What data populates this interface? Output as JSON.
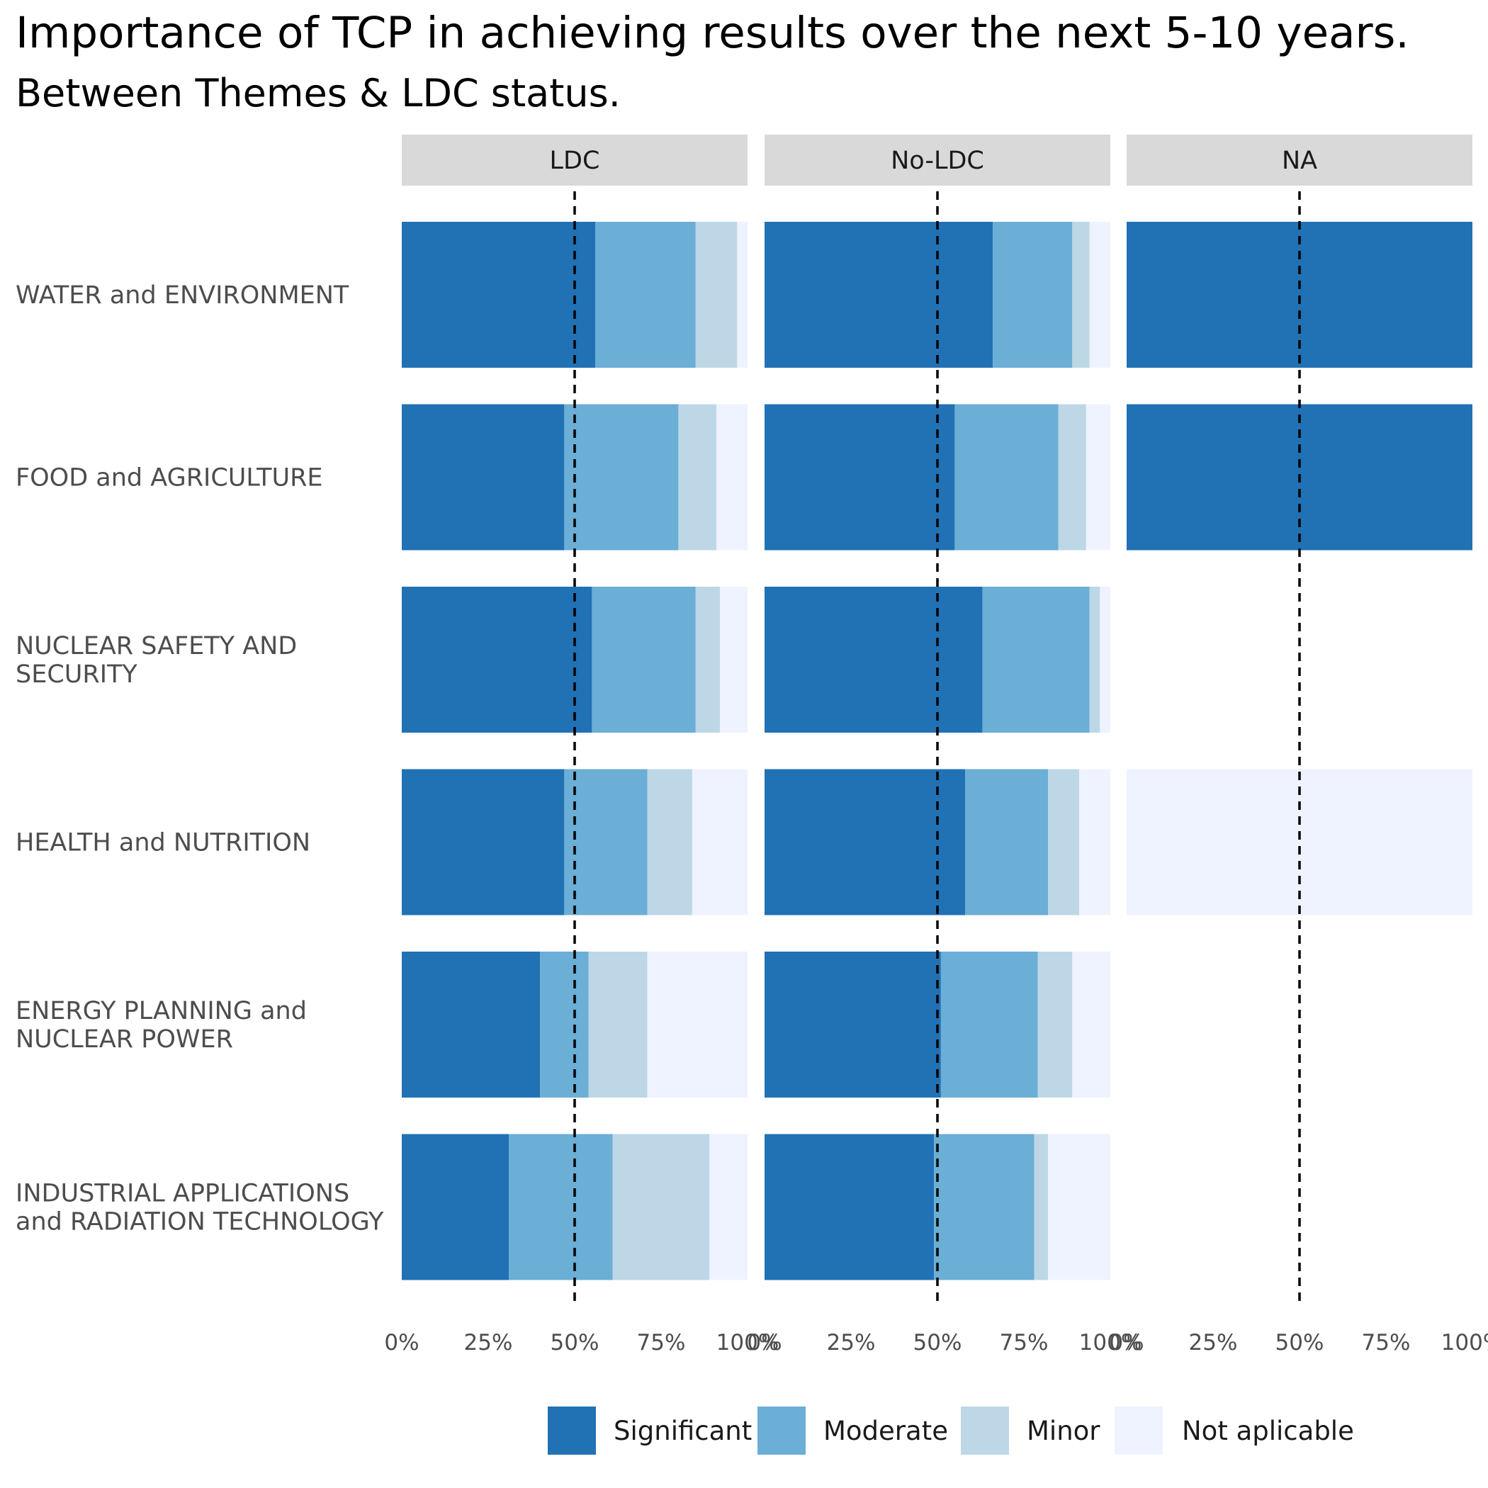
{
  "chart_data": {
    "type": "bar",
    "orientation": "horizontal",
    "stacked": "percent",
    "title": "Importance of TCP in achieving results over the next 5-10 years.",
    "subtitle": "Between Themes & LDC status.",
    "facets": [
      "LDC",
      "No-LDC",
      "NA"
    ],
    "categories": [
      "WATER and ENVIRONMENT",
      "FOOD and AGRICULTURE",
      "NUCLEAR SAFETY AND SECURITY",
      "HEALTH and NUTRITION",
      "ENERGY PLANNING and NUCLEAR POWER",
      "INDUSTRIAL APPLICATIONS and RADIATION TECHNOLOGY"
    ],
    "category_lines": [
      [
        "WATER and ENVIRONMENT"
      ],
      [
        "FOOD and AGRICULTURE"
      ],
      [
        "NUCLEAR SAFETY AND",
        "SECURITY"
      ],
      [
        "HEALTH and NUTRITION"
      ],
      [
        "ENERGY PLANNING and",
        "NUCLEAR POWER"
      ],
      [
        "INDUSTRIAL APPLICATIONS",
        "and RADIATION TECHNOLOGY"
      ]
    ],
    "series": [
      {
        "name": "Significant",
        "color": "#2171b5"
      },
      {
        "name": "Moderate",
        "color": "#6baed6"
      },
      {
        "name": "Minor",
        "color": "#bdd7e7"
      },
      {
        "name": "Not aplicable",
        "color": "#eff3ff"
      }
    ],
    "values": {
      "LDC": [
        [
          56,
          29,
          12,
          3
        ],
        [
          47,
          33,
          11,
          9
        ],
        [
          55,
          30,
          7,
          8
        ],
        [
          47,
          24,
          13,
          16
        ],
        [
          40,
          14,
          17,
          29
        ],
        [
          31,
          30,
          28,
          11
        ]
      ],
      "No-LDC": [
        [
          66,
          23,
          5,
          6
        ],
        [
          55,
          30,
          8,
          7
        ],
        [
          63,
          31,
          3,
          3
        ],
        [
          58,
          24,
          9,
          9
        ],
        [
          51,
          28,
          10,
          11
        ],
        [
          49,
          29,
          4,
          18
        ]
      ],
      "NA": [
        [
          100,
          0,
          0,
          0
        ],
        [
          100,
          0,
          0,
          0
        ],
        null,
        [
          0,
          0,
          0,
          100
        ],
        null,
        null
      ]
    },
    "xlim": [
      0,
      100
    ],
    "x_ticks": [
      "0%",
      "25%",
      "50%",
      "75%",
      "100%"
    ],
    "reference_line": {
      "x": 50,
      "style": "dashed"
    },
    "legend_position": "bottom",
    "grid": false
  }
}
